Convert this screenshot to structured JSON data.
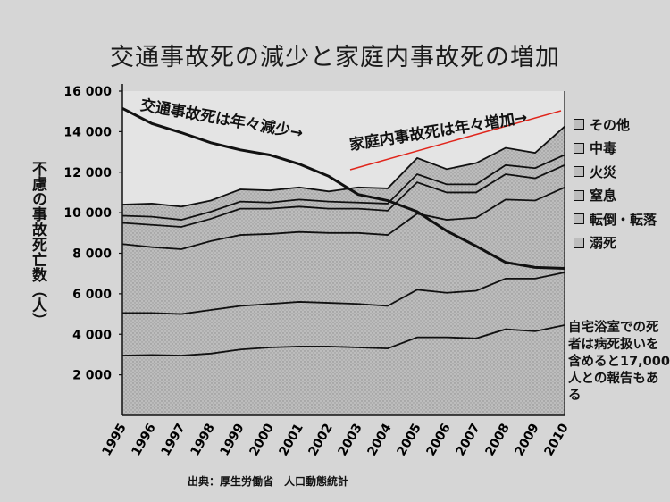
{
  "title": "交通事故死の減少と家庭内事故死の増加",
  "ylabel": "不慮の事故死亡数（人）",
  "source": "出典：厚生労働省　人口動態統計",
  "annotations": {
    "traffic": "交通事故死は年々減少→",
    "home": "家庭内事故死は年々増加→"
  },
  "note": "自宅浴室での死者は病死扱いを含めると17,000人との報告もある",
  "legend": [
    "その他",
    "中毒",
    "火災",
    "窒息",
    "転倒・転落",
    "溺死"
  ],
  "colors": {
    "background": "#d6d6d6",
    "area_fill": "#bdbdbd",
    "line": "#111111",
    "traffic_line": "#111111",
    "highlight": "#e0251b"
  },
  "chart_data": {
    "type": "area",
    "title": "交通事故死の減少と家庭内事故死の増加",
    "xlabel": "",
    "ylabel": "不慮の事故死亡数（人）",
    "ylim": [
      0,
      16000
    ],
    "yticks": [
      "2 000",
      "4 000",
      "6 000",
      "8 000",
      "10 000",
      "12 000",
      "14 000",
      "16 000"
    ],
    "ytick_values": [
      2000,
      4000,
      6000,
      8000,
      10000,
      12000,
      14000,
      16000
    ],
    "x": [
      "1995",
      "1996",
      "1997",
      "1998",
      "1999",
      "2000",
      "2001",
      "2002",
      "2003",
      "2004",
      "2005",
      "2006",
      "2007",
      "2008",
      "2009",
      "2010"
    ],
    "stacked_totals": [
      {
        "name": "溺死",
        "values": [
          2950,
          2980,
          2950,
          3050,
          3250,
          3350,
          3400,
          3400,
          3350,
          3300,
          3850,
          3850,
          3800,
          4250,
          4150,
          4450
        ]
      },
      {
        "name": "転倒・転落",
        "values": [
          5050,
          5050,
          5000,
          5200,
          5400,
          5500,
          5600,
          5550,
          5500,
          5400,
          6200,
          6050,
          6150,
          6750,
          6750,
          7050
        ]
      },
      {
        "name": "窒息",
        "values": [
          8450,
          8300,
          8200,
          8600,
          8900,
          8950,
          9050,
          9000,
          9000,
          8900,
          9950,
          9650,
          9750,
          10650,
          10600,
          11250
        ]
      },
      {
        "name": "火災",
        "values": [
          9500,
          9400,
          9300,
          9700,
          10200,
          10200,
          10300,
          10200,
          10200,
          10100,
          11500,
          11000,
          11000,
          11900,
          11700,
          12350
        ]
      },
      {
        "name": "中毒",
        "values": [
          9850,
          9800,
          9650,
          10050,
          10550,
          10500,
          10650,
          10550,
          10500,
          10450,
          11900,
          11400,
          11400,
          12350,
          12200,
          12850
        ]
      },
      {
        "name": "その他",
        "values": [
          10400,
          10450,
          10300,
          10600,
          11150,
          11100,
          11250,
          11050,
          11250,
          11200,
          12700,
          12150,
          12450,
          13200,
          12950,
          14250
        ]
      }
    ],
    "series": [
      {
        "name": "交通事故死",
        "values": [
          15150,
          14400,
          13950,
          13450,
          13100,
          12850,
          12400,
          11800,
          10900,
          10600,
          10050,
          9100,
          8350,
          7550,
          7300,
          7250
        ]
      }
    ],
    "grid": false
  }
}
